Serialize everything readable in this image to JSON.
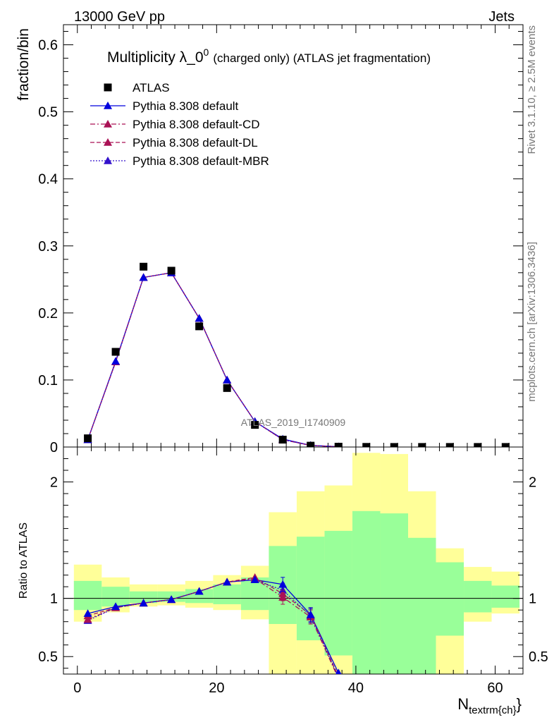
{
  "header": {
    "left": "13000 GeV pp",
    "right": "Jets"
  },
  "side_labels": {
    "rivet": "Rivet 3.1.10, ≥ 2.5M events",
    "mcplots": "mcplots.cern.ch [arXiv:1306.3436]"
  },
  "colors": {
    "data": "#000000",
    "default": "#0000dd",
    "cd": "#aa1155",
    "dl": "#aa1155",
    "mbr": "#3311cc",
    "band_inner": "#99ff99",
    "band_outer": "#ffff99"
  },
  "chart_data": [
    {
      "type": "scatter",
      "panel": "main",
      "title": "Multiplicity λ_0",
      "title_sup": "0",
      "title_suffix": "(charged only) (ATLAS jet fragmentation)",
      "ylabel": "fraction/bin",
      "watermark": "ATLAS_2019_I1740909",
      "xlim": [
        -2,
        64
      ],
      "ylim": [
        0,
        0.63
      ],
      "y_ticks": [
        0,
        0.1,
        0.2,
        0.3,
        0.4,
        0.5,
        0.6
      ],
      "y_tick_labels": [
        "0",
        "0.1",
        "0.2",
        "0.3",
        "0.4",
        "0.5",
        "0.6"
      ],
      "legend_position": "top-left",
      "series": [
        {
          "name": "ATLAS",
          "key": "data",
          "marker": "square",
          "x": [
            1.5,
            5.5,
            9.5,
            13.5,
            17.5,
            21.5,
            25.5,
            29.5,
            33.5,
            37.5,
            41.5,
            45.5,
            49.5,
            53.5,
            57.5,
            61.5
          ],
          "y": [
            0.013,
            0.142,
            0.269,
            0.263,
            0.18,
            0.088,
            0.033,
            0.011,
            0.002,
            0.0005,
            0.0002,
            0.0001,
            0.0001,
            0.0001,
            0.0001,
            0.0001
          ]
        },
        {
          "name": "Pythia 8.308 default",
          "key": "default",
          "marker": "triangle",
          "dash": "",
          "x": [
            1.5,
            5.5,
            9.5,
            13.5,
            17.5,
            21.5,
            25.5,
            29.5,
            33.5,
            37.5
          ],
          "y": [
            0.011,
            0.128,
            0.253,
            0.26,
            0.192,
            0.1,
            0.038,
            0.012,
            0.0025,
            0.0005
          ]
        },
        {
          "name": "Pythia 8.308 default-CD",
          "key": "cd",
          "marker": "triangle",
          "dash": "7,3,2,3",
          "x": [
            1.5,
            5.5,
            9.5,
            13.5,
            17.5,
            21.5,
            25.5,
            29.5,
            33.5,
            37.5
          ],
          "y": [
            0.011,
            0.127,
            0.253,
            0.26,
            0.192,
            0.1,
            0.038,
            0.011,
            0.0024,
            0.0004
          ]
        },
        {
          "name": "Pythia 8.308 default-DL",
          "key": "dl",
          "marker": "triangle",
          "dash": "6,3",
          "x": [
            1.5,
            5.5,
            9.5,
            13.5,
            17.5,
            21.5,
            25.5,
            29.5,
            33.5,
            37.5
          ],
          "y": [
            0.011,
            0.127,
            0.253,
            0.26,
            0.192,
            0.1,
            0.038,
            0.011,
            0.0024,
            0.0004
          ]
        },
        {
          "name": "Pythia 8.308 default-MBR",
          "key": "mbr",
          "marker": "triangle",
          "dash": "2,2",
          "x": [
            1.5,
            5.5,
            9.5,
            13.5,
            17.5,
            21.5,
            25.5,
            29.5,
            33.5,
            37.5
          ],
          "y": [
            0.011,
            0.127,
            0.253,
            0.26,
            0.192,
            0.1,
            0.038,
            0.011,
            0.0024,
            0.0004
          ]
        }
      ]
    },
    {
      "type": "line",
      "panel": "ratio",
      "ylabel": "Ratio to ATLAS",
      "xlabel": "N",
      "xlabel_sub": "textrm{ch}",
      "xlim": [
        -2,
        64
      ],
      "ylim": [
        0.35,
        2.3
      ],
      "y_ticks": [
        0.5,
        1,
        2
      ],
      "y_tick_labels": [
        "0.5",
        "1",
        "2"
      ],
      "x_ticks": [
        0,
        20,
        40,
        60
      ],
      "x_tick_labels": [
        "0",
        "20",
        "40",
        "60"
      ],
      "reference_line": 1,
      "bands": {
        "edges": [
          -0.5,
          3.5,
          7.5,
          11.5,
          15.5,
          19.5,
          23.5,
          27.5,
          31.5,
          35.5,
          39.5,
          43.5,
          47.5,
          51.5,
          55.5,
          59.5,
          63.5
        ],
        "outer_lo": [
          0.8,
          0.88,
          0.93,
          0.94,
          0.92,
          0.9,
          0.82,
          0.35,
          0.35,
          0.35,
          0.35,
          0.35,
          0.35,
          0.35,
          0.8,
          0.87
        ],
        "outer_hi": [
          1.29,
          1.18,
          1.12,
          1.12,
          1.15,
          1.2,
          1.28,
          1.74,
          1.92,
          1.97,
          2.25,
          2.24,
          1.92,
          1.43,
          1.27,
          1.23
        ],
        "inner_lo": [
          0.9,
          0.93,
          0.96,
          0.97,
          0.96,
          0.95,
          0.9,
          0.78,
          0.64,
          0.51,
          0.35,
          0.35,
          0.35,
          0.68,
          0.88,
          0.92
        ],
        "inner_hi": [
          1.15,
          1.1,
          1.06,
          1.06,
          1.08,
          1.12,
          1.18,
          1.45,
          1.53,
          1.58,
          1.75,
          1.73,
          1.52,
          1.31,
          1.15,
          1.11
        ]
      },
      "series": [
        {
          "name": "Pythia 8.308 default",
          "key": "default",
          "dash": "",
          "x": [
            1.5,
            5.5,
            9.5,
            13.5,
            17.5,
            21.5,
            25.5,
            29.5,
            33.5,
            37.5
          ],
          "y": [
            0.87,
            0.93,
            0.96,
            0.99,
            1.06,
            1.14,
            1.16,
            1.12,
            0.86,
            0.36
          ]
        },
        {
          "name": "Pythia 8.308 default-CD",
          "key": "cd",
          "dash": "7,3,2,3",
          "x": [
            1.5,
            5.5,
            9.5,
            13.5,
            17.5,
            21.5,
            25.5,
            29.5,
            33.5,
            37.5
          ],
          "y": [
            0.82,
            0.92,
            0.96,
            0.99,
            1.06,
            1.14,
            1.17,
            1.01,
            0.84,
            0.31
          ]
        },
        {
          "name": "Pythia 8.308 default-DL",
          "key": "dl",
          "dash": "6,3",
          "x": [
            1.5,
            5.5,
            9.5,
            13.5,
            17.5,
            21.5,
            25.5,
            29.5,
            33.5,
            37.5
          ],
          "y": [
            0.85,
            0.92,
            0.96,
            0.99,
            1.06,
            1.14,
            1.18,
            1.04,
            0.86,
            0.33
          ]
        },
        {
          "name": "Pythia 8.308 default-MBR",
          "key": "mbr",
          "dash": "2,2",
          "x": [
            1.5,
            5.5,
            9.5,
            13.5,
            17.5,
            21.5,
            25.5,
            29.5,
            33.5,
            37.5
          ],
          "y": [
            0.81,
            0.92,
            0.96,
            0.99,
            1.06,
            1.14,
            1.16,
            1.07,
            0.85,
            0.32
          ]
        }
      ]
    }
  ]
}
